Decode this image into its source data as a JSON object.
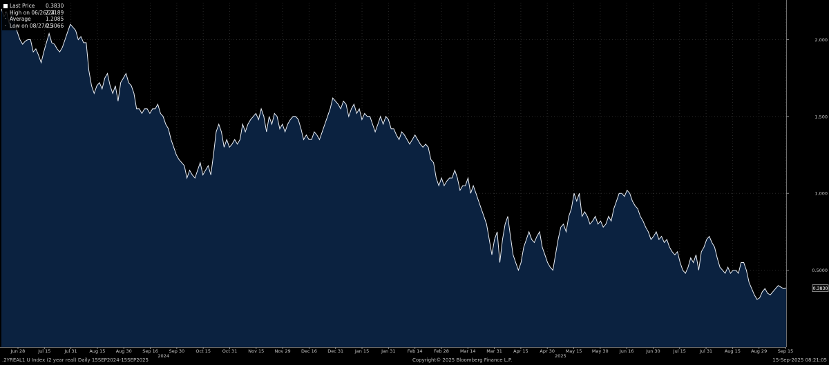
{
  "legend": {
    "last_price_label": "Last Price",
    "last_price_value": "0.3830",
    "high_label": "High on 06/26/24",
    "high_value": "2.2189",
    "average_label": "Average",
    "average_value": "1.2085",
    "low_label": "Low on 08/27/25",
    "low_value": "0.3066"
  },
  "footer": {
    "index_description": ".2YREAL1 U Index (2 year real)  Daily 15SEP2024-15SEP2025",
    "copyright": "Copyright© 2025 Bloomberg Finance L.P.",
    "timestamp": "15-Sep-2025 08:21:05"
  },
  "colors": {
    "background": "#000000",
    "area_fill": "#0b2240",
    "line": "#e9eef5",
    "grid": "#2b2b2b",
    "label_box": "#111111"
  },
  "chart_data": {
    "type": "area",
    "title": "",
    "xlabel": "",
    "ylabel": "",
    "ylim": [
      0.0,
      2.24
    ],
    "y_ticks": [
      "0.5000",
      "1.000",
      "1.500",
      "2.000"
    ],
    "y_tick_values": [
      0.5,
      1.0,
      1.5,
      2.0
    ],
    "x_ticks": [
      "Jun 28",
      "Jul 15",
      "Jul 31",
      "Aug 15",
      "Aug 30",
      "Sep 16",
      "Sep 30",
      "Oct 15",
      "Oct 31",
      "Nov 15",
      "Nov 29",
      "Dec 16",
      "Dec 31",
      "Jan 15",
      "Jan 31",
      "Feb 14",
      "Feb 28",
      "Mar 14",
      "Mar 31",
      "Apr 15",
      "Apr 30",
      "May 15",
      "May 30",
      "Jun 16",
      "Jun 30",
      "Jul 15",
      "Jul 31",
      "Aug 15",
      "Aug 29",
      "Sep 15"
    ],
    "year_labels": [
      {
        "label": "2024",
        "after_tick": "Sep 30"
      },
      {
        "label": "2025",
        "after_tick": "May 15"
      }
    ],
    "last_value_label": "0.3830",
    "grid": true,
    "legend_position": "top-left",
    "series": [
      {
        "values": [
          2.2,
          2.15,
          2.18,
          2.1,
          2.19,
          2.1,
          2.05,
          2.0,
          1.97,
          1.99,
          2.0,
          2.0,
          1.92,
          1.94,
          1.9,
          1.85,
          1.92,
          1.98,
          2.04,
          1.98,
          1.97,
          1.94,
          1.92,
          1.95,
          2.0,
          2.05,
          2.1,
          2.08,
          2.06,
          2.0,
          2.02,
          1.98,
          1.98,
          1.8,
          1.7,
          1.65,
          1.7,
          1.72,
          1.68,
          1.75,
          1.78,
          1.7,
          1.65,
          1.7,
          1.6,
          1.72,
          1.75,
          1.78,
          1.72,
          1.7,
          1.65,
          1.55,
          1.55,
          1.52,
          1.55,
          1.55,
          1.52,
          1.55,
          1.55,
          1.58,
          1.52,
          1.5,
          1.45,
          1.42,
          1.35,
          1.3,
          1.25,
          1.22,
          1.2,
          1.18,
          1.1,
          1.15,
          1.12,
          1.1,
          1.15,
          1.2,
          1.12,
          1.15,
          1.18,
          1.12,
          1.25,
          1.4,
          1.45,
          1.4,
          1.3,
          1.35,
          1.3,
          1.32,
          1.35,
          1.32,
          1.35,
          1.45,
          1.4,
          1.45,
          1.48,
          1.5,
          1.52,
          1.48,
          1.55,
          1.5,
          1.4,
          1.5,
          1.45,
          1.52,
          1.5,
          1.42,
          1.45,
          1.4,
          1.45,
          1.48,
          1.5,
          1.5,
          1.48,
          1.42,
          1.35,
          1.38,
          1.35,
          1.35,
          1.4,
          1.38,
          1.35,
          1.4,
          1.45,
          1.5,
          1.55,
          1.62,
          1.6,
          1.58,
          1.55,
          1.6,
          1.58,
          1.5,
          1.55,
          1.58,
          1.52,
          1.55,
          1.48,
          1.52,
          1.5,
          1.5,
          1.45,
          1.4,
          1.45,
          1.5,
          1.45,
          1.5,
          1.48,
          1.42,
          1.42,
          1.38,
          1.35,
          1.4,
          1.38,
          1.35,
          1.32,
          1.35,
          1.38,
          1.35,
          1.32,
          1.3,
          1.32,
          1.3,
          1.22,
          1.2,
          1.1,
          1.05,
          1.1,
          1.05,
          1.08,
          1.1,
          1.1,
          1.15,
          1.1,
          1.02,
          1.05,
          1.05,
          1.1,
          1.0,
          1.05,
          1.0,
          0.95,
          0.9,
          0.85,
          0.8,
          0.7,
          0.6,
          0.7,
          0.75,
          0.55,
          0.7,
          0.8,
          0.85,
          0.72,
          0.6,
          0.55,
          0.5,
          0.55,
          0.65,
          0.7,
          0.75,
          0.7,
          0.68,
          0.72,
          0.75,
          0.65,
          0.6,
          0.55,
          0.52,
          0.5,
          0.6,
          0.7,
          0.78,
          0.8,
          0.75,
          0.85,
          0.9,
          1.0,
          0.95,
          1.0,
          0.85,
          0.88,
          0.85,
          0.8,
          0.82,
          0.85,
          0.8,
          0.82,
          0.78,
          0.8,
          0.85,
          0.82,
          0.9,
          0.95,
          1.0,
          1.0,
          0.98,
          1.02,
          1.0,
          0.95,
          0.92,
          0.9,
          0.85,
          0.82,
          0.78,
          0.75,
          0.7,
          0.72,
          0.75,
          0.7,
          0.72,
          0.68,
          0.7,
          0.65,
          0.62,
          0.6,
          0.62,
          0.55,
          0.5,
          0.48,
          0.52,
          0.58,
          0.55,
          0.6,
          0.5,
          0.62,
          0.65,
          0.7,
          0.72,
          0.68,
          0.65,
          0.58,
          0.52,
          0.5,
          0.48,
          0.52,
          0.48,
          0.5,
          0.5,
          0.48,
          0.55,
          0.55,
          0.5,
          0.42,
          0.38,
          0.34,
          0.31,
          0.32,
          0.36,
          0.38,
          0.35,
          0.34,
          0.36,
          0.38,
          0.4,
          0.39,
          0.38,
          0.383
        ]
      }
    ]
  }
}
